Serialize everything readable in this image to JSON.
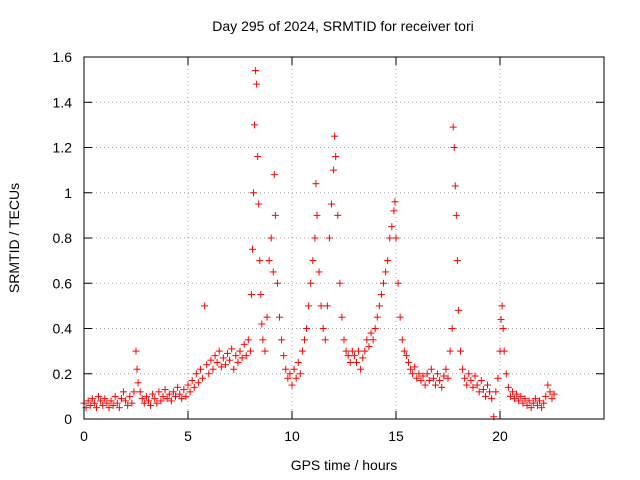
{
  "chart_data": {
    "type": "scatter",
    "title": "Day 295 of 2024, SRMTID for receiver tori",
    "xlabel": "GPS time / hours",
    "ylabel": "SRMTID / TECUs",
    "xlim": [
      0,
      25
    ],
    "ylim": [
      0,
      1.6
    ],
    "xticks": [
      0,
      5,
      10,
      15,
      20
    ],
    "yticks": [
      0,
      0.2,
      0.4,
      0.6,
      0.8,
      1,
      1.2,
      1.4,
      1.6
    ],
    "xtick_labels": [
      "0",
      "5",
      "10",
      "15",
      "20"
    ],
    "ytick_labels": [
      "0",
      "0.2",
      "0.4",
      "0.6",
      "0.8",
      "1",
      "1.2",
      "1.4",
      "1.6"
    ],
    "grid": true,
    "marker": "+",
    "series": [
      {
        "name": "SRMTID",
        "color": "#ff0000",
        "points": [
          [
            0.0,
            0.07
          ],
          [
            0.1,
            0.05
          ],
          [
            0.2,
            0.08
          ],
          [
            0.3,
            0.06
          ],
          [
            0.4,
            0.09
          ],
          [
            0.5,
            0.07
          ],
          [
            0.6,
            0.05
          ],
          [
            0.7,
            0.1
          ],
          [
            0.8,
            0.08
          ],
          [
            0.9,
            0.06
          ],
          [
            1.0,
            0.09
          ],
          [
            1.1,
            0.07
          ],
          [
            1.2,
            0.05
          ],
          [
            1.3,
            0.08
          ],
          [
            1.4,
            0.06
          ],
          [
            1.5,
            0.1
          ],
          [
            1.6,
            0.07
          ],
          [
            1.7,
            0.05
          ],
          [
            1.8,
            0.09
          ],
          [
            1.9,
            0.12
          ],
          [
            2.0,
            0.08
          ],
          [
            2.1,
            0.06
          ],
          [
            2.2,
            0.1
          ],
          [
            2.3,
            0.07
          ],
          [
            2.4,
            0.12
          ],
          [
            2.5,
            0.3
          ],
          [
            2.55,
            0.22
          ],
          [
            2.6,
            0.16
          ],
          [
            2.7,
            0.12
          ],
          [
            2.8,
            0.09
          ],
          [
            2.9,
            0.07
          ],
          [
            3.0,
            0.1
          ],
          [
            3.1,
            0.08
          ],
          [
            3.2,
            0.06
          ],
          [
            3.3,
            0.11
          ],
          [
            3.4,
            0.09
          ],
          [
            3.5,
            0.07
          ],
          [
            3.6,
            0.12
          ],
          [
            3.7,
            0.08
          ],
          [
            3.8,
            0.1
          ],
          [
            3.9,
            0.13
          ],
          [
            4.0,
            0.09
          ],
          [
            4.1,
            0.11
          ],
          [
            4.2,
            0.08
          ],
          [
            4.3,
            0.12
          ],
          [
            4.4,
            0.1
          ],
          [
            4.5,
            0.14
          ],
          [
            4.6,
            0.11
          ],
          [
            4.7,
            0.09
          ],
          [
            4.8,
            0.13
          ],
          [
            4.9,
            0.1
          ],
          [
            5.0,
            0.15
          ],
          [
            5.1,
            0.12
          ],
          [
            5.2,
            0.17
          ],
          [
            5.3,
            0.14
          ],
          [
            5.4,
            0.2
          ],
          [
            5.5,
            0.16
          ],
          [
            5.6,
            0.22
          ],
          [
            5.7,
            0.18
          ],
          [
            5.8,
            0.5
          ],
          [
            5.9,
            0.24
          ],
          [
            6.0,
            0.2
          ],
          [
            6.1,
            0.26
          ],
          [
            6.2,
            0.22
          ],
          [
            6.3,
            0.28
          ],
          [
            6.4,
            0.25
          ],
          [
            6.5,
            0.3
          ],
          [
            6.6,
            0.23
          ],
          [
            6.7,
            0.27
          ],
          [
            6.8,
            0.24
          ],
          [
            6.9,
            0.29
          ],
          [
            7.0,
            0.26
          ],
          [
            7.1,
            0.31
          ],
          [
            7.2,
            0.22
          ],
          [
            7.3,
            0.28
          ],
          [
            7.4,
            0.25
          ],
          [
            7.5,
            0.3
          ],
          [
            7.6,
            0.27
          ],
          [
            7.7,
            0.33
          ],
          [
            7.8,
            0.28
          ],
          [
            7.9,
            0.35
          ],
          [
            8.0,
            0.3
          ],
          [
            8.05,
            0.55
          ],
          [
            8.1,
            0.75
          ],
          [
            8.15,
            1.0
          ],
          [
            8.2,
            1.3
          ],
          [
            8.25,
            1.54
          ],
          [
            8.3,
            1.48
          ],
          [
            8.35,
            1.16
          ],
          [
            8.4,
            0.95
          ],
          [
            8.45,
            0.7
          ],
          [
            8.5,
            0.55
          ],
          [
            8.55,
            0.42
          ],
          [
            8.6,
            0.35
          ],
          [
            8.7,
            0.3
          ],
          [
            8.8,
            0.45
          ],
          [
            8.9,
            0.7
          ],
          [
            9.0,
            0.8
          ],
          [
            9.1,
            0.65
          ],
          [
            9.15,
            1.08
          ],
          [
            9.2,
            0.9
          ],
          [
            9.3,
            0.6
          ],
          [
            9.4,
            0.45
          ],
          [
            9.5,
            0.35
          ],
          [
            9.6,
            0.28
          ],
          [
            9.7,
            0.22
          ],
          [
            9.8,
            0.18
          ],
          [
            9.9,
            0.2
          ],
          [
            10.0,
            0.15
          ],
          [
            10.1,
            0.22
          ],
          [
            10.2,
            0.18
          ],
          [
            10.3,
            0.25
          ],
          [
            10.4,
            0.2
          ],
          [
            10.5,
            0.3
          ],
          [
            10.6,
            0.35
          ],
          [
            10.7,
            0.4
          ],
          [
            10.8,
            0.5
          ],
          [
            10.9,
            0.6
          ],
          [
            11.0,
            0.7
          ],
          [
            11.1,
            0.8
          ],
          [
            11.15,
            1.04
          ],
          [
            11.2,
            0.9
          ],
          [
            11.3,
            0.65
          ],
          [
            11.4,
            0.5
          ],
          [
            11.5,
            0.4
          ],
          [
            11.6,
            0.35
          ],
          [
            11.7,
            0.5
          ],
          [
            11.8,
            0.8
          ],
          [
            11.9,
            0.95
          ],
          [
            12.0,
            1.1
          ],
          [
            12.05,
            1.25
          ],
          [
            12.1,
            1.16
          ],
          [
            12.2,
            0.9
          ],
          [
            12.3,
            0.6
          ],
          [
            12.4,
            0.45
          ],
          [
            12.5,
            0.35
          ],
          [
            12.6,
            0.3
          ],
          [
            12.7,
            0.28
          ],
          [
            12.8,
            0.25
          ],
          [
            12.9,
            0.3
          ],
          [
            13.0,
            0.28
          ],
          [
            13.1,
            0.25
          ],
          [
            13.2,
            0.3
          ],
          [
            13.3,
            0.22
          ],
          [
            13.4,
            0.27
          ],
          [
            13.5,
            0.3
          ],
          [
            13.6,
            0.35
          ],
          [
            13.7,
            0.32
          ],
          [
            13.8,
            0.38
          ],
          [
            13.9,
            0.35
          ],
          [
            14.0,
            0.4
          ],
          [
            14.1,
            0.45
          ],
          [
            14.2,
            0.5
          ],
          [
            14.3,
            0.55
          ],
          [
            14.4,
            0.6
          ],
          [
            14.5,
            0.65
          ],
          [
            14.6,
            0.7
          ],
          [
            14.7,
            0.8
          ],
          [
            14.8,
            0.85
          ],
          [
            14.9,
            0.92
          ],
          [
            14.95,
            0.96
          ],
          [
            15.0,
            0.8
          ],
          [
            15.1,
            0.6
          ],
          [
            15.2,
            0.45
          ],
          [
            15.3,
            0.35
          ],
          [
            15.4,
            0.3
          ],
          [
            15.5,
            0.28
          ],
          [
            15.6,
            0.25
          ],
          [
            15.7,
            0.22
          ],
          [
            15.8,
            0.2
          ],
          [
            15.9,
            0.23
          ],
          [
            16.0,
            0.18
          ],
          [
            16.1,
            0.2
          ],
          [
            16.2,
            0.17
          ],
          [
            16.3,
            0.19
          ],
          [
            16.4,
            0.15
          ],
          [
            16.5,
            0.2
          ],
          [
            16.6,
            0.17
          ],
          [
            16.7,
            0.22
          ],
          [
            16.8,
            0.18
          ],
          [
            16.9,
            0.15
          ],
          [
            17.0,
            0.2
          ],
          [
            17.1,
            0.17
          ],
          [
            17.2,
            0.14
          ],
          [
            17.3,
            0.19
          ],
          [
            17.4,
            0.22
          ],
          [
            17.5,
            0.18
          ],
          [
            17.6,
            0.3
          ],
          [
            17.7,
            0.4
          ],
          [
            17.75,
            1.29
          ],
          [
            17.8,
            1.2
          ],
          [
            17.85,
            1.03
          ],
          [
            17.9,
            0.9
          ],
          [
            17.95,
            0.7
          ],
          [
            18.0,
            0.48
          ],
          [
            18.1,
            0.3
          ],
          [
            18.2,
            0.22
          ],
          [
            18.3,
            0.18
          ],
          [
            18.4,
            0.15
          ],
          [
            18.5,
            0.2
          ],
          [
            18.6,
            0.17
          ],
          [
            18.7,
            0.14
          ],
          [
            18.8,
            0.19
          ],
          [
            18.9,
            0.15
          ],
          [
            19.0,
            0.12
          ],
          [
            19.1,
            0.17
          ],
          [
            19.2,
            0.13
          ],
          [
            19.3,
            0.1
          ],
          [
            19.4,
            0.15
          ],
          [
            19.5,
            0.12
          ],
          [
            19.6,
            0.09
          ],
          [
            19.7,
            0.01
          ],
          [
            19.8,
            0.12
          ],
          [
            19.9,
            0.18
          ],
          [
            20.0,
            0.3
          ],
          [
            20.05,
            0.44
          ],
          [
            20.1,
            0.5
          ],
          [
            20.15,
            0.4
          ],
          [
            20.2,
            0.3
          ],
          [
            20.3,
            0.2
          ],
          [
            20.4,
            0.14
          ],
          [
            20.5,
            0.1
          ],
          [
            20.6,
            0.12
          ],
          [
            20.7,
            0.09
          ],
          [
            20.8,
            0.11
          ],
          [
            20.9,
            0.08
          ],
          [
            21.0,
            0.1
          ],
          [
            21.1,
            0.07
          ],
          [
            21.2,
            0.09
          ],
          [
            21.3,
            0.06
          ],
          [
            21.4,
            0.08
          ],
          [
            21.5,
            0.05
          ],
          [
            21.6,
            0.07
          ],
          [
            21.7,
            0.09
          ],
          [
            21.8,
            0.06
          ],
          [
            21.9,
            0.08
          ],
          [
            22.0,
            0.05
          ],
          [
            22.1,
            0.07
          ],
          [
            22.2,
            0.1
          ],
          [
            22.3,
            0.15
          ],
          [
            22.4,
            0.12
          ],
          [
            22.5,
            0.09
          ],
          [
            22.6,
            0.11
          ]
        ]
      }
    ]
  }
}
